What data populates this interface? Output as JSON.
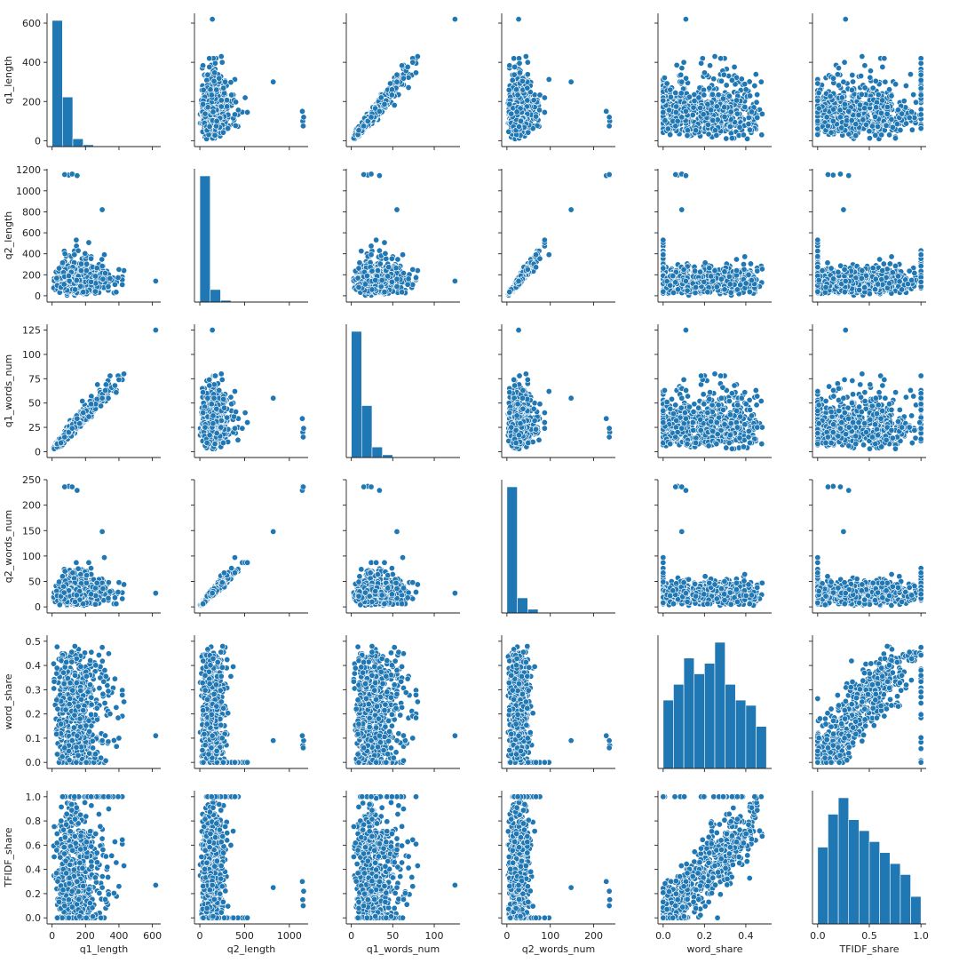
{
  "chart_data": {
    "type": "pairplot",
    "grid": false,
    "variables": [
      "q1_length",
      "q2_length",
      "q1_words_num",
      "q2_words_num",
      "word_share",
      "TFIDF_share"
    ],
    "color": "#1f77b4",
    "axes": {
      "q1_length": {
        "lim": [
          -30,
          650
        ],
        "ticks": [
          0,
          200,
          400,
          600
        ],
        "ticklabels": [
          "0",
          "200",
          "400",
          "600"
        ]
      },
      "q2_length": {
        "lim": [
          -60,
          1210
        ],
        "ticks": [
          0,
          200,
          400,
          600,
          800,
          1000,
          1200
        ],
        "ticklabels": [
          "0",
          "200",
          "400",
          "600",
          "800",
          "1000",
          "1200"
        ],
        "x_ticks": [
          0,
          500,
          1000
        ],
        "x_ticklabels": [
          "0",
          "500",
          "1000"
        ]
      },
      "q1_words_num": {
        "lim": [
          -6,
          131
        ],
        "ticks": [
          0,
          25,
          50,
          75,
          100,
          125
        ],
        "ticklabels": [
          "0",
          "25",
          "50",
          "75",
          "100",
          "125"
        ],
        "x_ticks": [
          0,
          50,
          100
        ],
        "x_ticklabels": [
          "0",
          "50",
          "100"
        ]
      },
      "q2_words_num": {
        "lim": [
          -12,
          250
        ],
        "ticks": [
          0,
          50,
          100,
          150,
          200,
          250
        ],
        "ticklabels": [
          "0",
          "50",
          "100",
          "150",
          "200",
          "250"
        ],
        "x_ticks": [
          0,
          100,
          200
        ],
        "x_ticklabels": [
          "0",
          "100",
          "200"
        ]
      },
      "word_share": {
        "lim": [
          -0.025,
          0.525
        ],
        "ticks": [
          0,
          0.1,
          0.2,
          0.3,
          0.4,
          0.5
        ],
        "ticklabels": [
          "0.0",
          "0.1",
          "0.2",
          "0.3",
          "0.4",
          "0.5"
        ],
        "x_ticks": [
          0,
          0.2,
          0.4
        ],
        "x_ticklabels": [
          "0.0",
          "0.2",
          "0.4"
        ]
      },
      "TFIDF_share": {
        "lim": [
          -0.05,
          1.05
        ],
        "ticks": [
          0,
          0.2,
          0.4,
          0.6,
          0.8,
          1.0
        ],
        "ticklabels": [
          "0.0",
          "0.2",
          "0.4",
          "0.6",
          "0.8",
          "1.0"
        ],
        "x_ticks": [
          0,
          0.5,
          1.0
        ],
        "x_ticklabels": [
          "0.0",
          "0.5",
          "1.0"
        ]
      }
    },
    "histograms": {
      "q1_length": {
        "bins": [
          0,
          62,
          124,
          186,
          248,
          310,
          372,
          434,
          496,
          558,
          620
        ],
        "counts": [
          4200,
          1650,
          260,
          60,
          15,
          5,
          2,
          1,
          0,
          1
        ]
      },
      "q2_length": {
        "bins": [
          0,
          116,
          232,
          348,
          464,
          580,
          696,
          812,
          928,
          1044,
          1160
        ],
        "counts": [
          11600,
          1150,
          160,
          35,
          12,
          6,
          3,
          1,
          2,
          3
        ]
      },
      "q1_words_num": {
        "bins": [
          0,
          12.5,
          25,
          37.5,
          50,
          62.5,
          75,
          87.5,
          100,
          112.5,
          125
        ],
        "counts": [
          10200,
          4200,
          850,
          220,
          50,
          14,
          4,
          0,
          0,
          1
        ]
      },
      "q2_words_num": {
        "bins": [
          0,
          24,
          48,
          72,
          96,
          120,
          144,
          168,
          192,
          216,
          240
        ],
        "counts": [
          12100,
          1450,
          360,
          70,
          20,
          6,
          2,
          0,
          0,
          4
        ]
      },
      "word_share": {
        "bins": [
          0,
          0.05,
          0.1,
          0.15,
          0.2,
          0.25,
          0.3,
          0.35,
          0.4,
          0.45,
          0.5
        ],
        "counts": [
          13,
          16,
          21,
          18,
          20,
          24,
          16,
          13,
          12,
          8
        ]
      },
      "TFIDF_share": {
        "bins": [
          0,
          0.1,
          0.2,
          0.3,
          0.4,
          0.5,
          0.6,
          0.7,
          0.8,
          0.9,
          1.0
        ],
        "counts": [
          14,
          20,
          23,
          19,
          17,
          15,
          13,
          11,
          9,
          5
        ]
      }
    },
    "outliers": [
      {
        "q1_length": 620,
        "q2_length": 140,
        "q1_words_num": 125,
        "q2_words_num": 27,
        "word_share": 0.11,
        "TFIDF_share": 0.27
      },
      {
        "q1_length": 100,
        "q2_length": 1150,
        "q1_words_num": 20,
        "q2_words_num": 237,
        "word_share": 0.07,
        "TFIDF_share": 0.15
      },
      {
        "q1_length": 120,
        "q2_length": 1160,
        "q1_words_num": 24,
        "q2_words_num": 236,
        "word_share": 0.09,
        "TFIDF_share": 0.22
      },
      {
        "q1_length": 150,
        "q2_length": 1145,
        "q1_words_num": 34,
        "q2_words_num": 229,
        "word_share": 0.11,
        "TFIDF_share": 0.3
      },
      {
        "q1_length": 75,
        "q2_length": 1155,
        "q1_words_num": 15,
        "q2_words_num": 236,
        "word_share": 0.06,
        "TFIDF_share": 0.1
      },
      {
        "q1_length": 430,
        "q2_length": 240,
        "q1_words_num": 80,
        "q2_words_num": 44,
        "word_share": 0.25,
        "TFIDF_share": 0.43
      },
      {
        "q1_length": 300,
        "q2_length": 820,
        "q1_words_num": 55,
        "q2_words_num": 148,
        "word_share": 0.09,
        "TFIDF_share": 0.25
      },
      {
        "q1_length": 400,
        "q2_length": 250,
        "q1_words_num": 74,
        "q2_words_num": 48,
        "word_share": 0.1,
        "TFIDF_share": 0.26
      }
    ]
  }
}
